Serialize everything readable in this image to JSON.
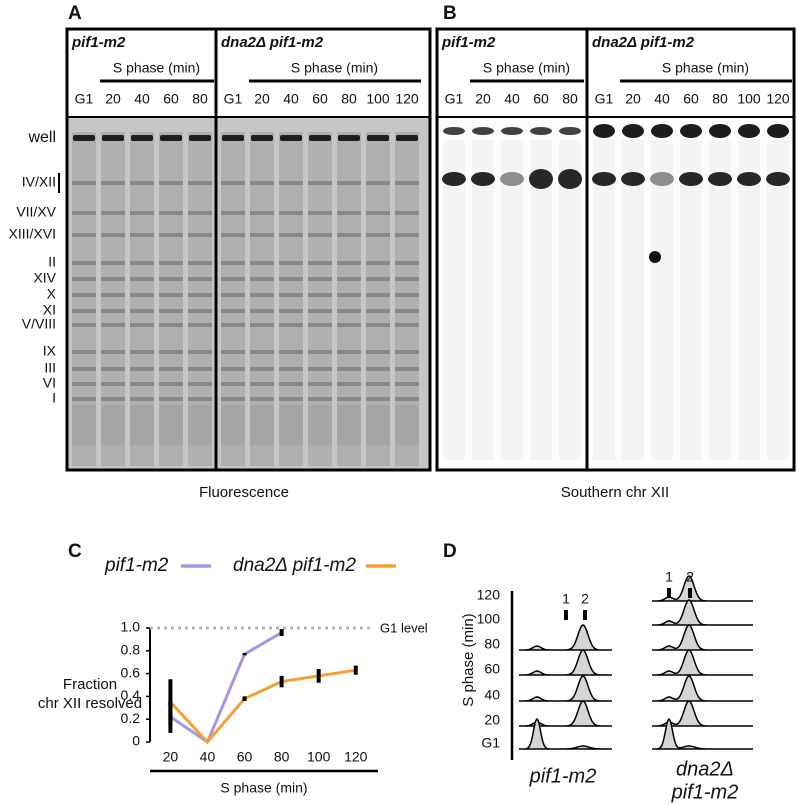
{
  "panel_a": {
    "panel_label": "A",
    "strains": [
      {
        "name": "pif1-m2",
        "lanes": [
          "G1",
          "20",
          "40",
          "60",
          "80"
        ]
      },
      {
        "name": "dna2Δ pif1-m2",
        "lanes": [
          "G1",
          "20",
          "40",
          "60",
          "80",
          "100",
          "120"
        ]
      }
    ],
    "lane_axis": "S phase (min)",
    "bands": [
      "well",
      "IV/XII",
      "VII/XV",
      "XIII/XVI",
      "II",
      "XIV",
      "X",
      "XI",
      "V/VIII",
      "IX",
      "III",
      "VI",
      "I"
    ],
    "caption": "Fluorescence"
  },
  "panel_b": {
    "panel_label": "B",
    "strains": [
      {
        "name": "pif1-m2",
        "lanes": [
          "G1",
          "20",
          "40",
          "60",
          "80"
        ]
      },
      {
        "name": "dna2Δ pif1-m2",
        "lanes": [
          "G1",
          "20",
          "40",
          "60",
          "80",
          "100",
          "120"
        ]
      }
    ],
    "lane_axis": "S phase (min)",
    "caption": "Southern chr XII"
  },
  "chart_data": {
    "type": "line",
    "panel_label": "C",
    "x": [
      20,
      40,
      60,
      80,
      100,
      120
    ],
    "series": [
      {
        "name": "pif1-m2",
        "color": "#9f98e6",
        "values": [
          0.22,
          0,
          0.77,
          0.96,
          null,
          null
        ],
        "errors": [
          0.14,
          null,
          0.01,
          0.03,
          null,
          null
        ]
      },
      {
        "name": "dna2Δ pif1-m2",
        "color": "#f5a033",
        "values": [
          0.35,
          0,
          0.38,
          0.53,
          0.58,
          0.63
        ],
        "errors": [
          0.2,
          null,
          0.02,
          0.05,
          0.06,
          0.04
        ]
      }
    ],
    "xlim": [
      9,
      132
    ],
    "ylim": [
      0,
      1
    ],
    "xticks": [
      20,
      40,
      60,
      80,
      100,
      120
    ],
    "yticks": [
      0,
      0.2,
      0.4,
      0.6,
      0.8,
      {
        "value": 1,
        "label": "1.0"
      }
    ],
    "xlabel": "S phase (min)",
    "ylabel": [
      "Fraction",
      "chr XII resolved"
    ],
    "reference": {
      "value": 1,
      "label": "G1 level",
      "color": "#b0b8b0"
    }
  },
  "panel_d": {
    "panel_label": "D",
    "rows": [
      "120",
      "100",
      "80",
      "60",
      "40",
      "20",
      "G1"
    ],
    "axis_label": "S phase (min)",
    "peaks": [
      "1",
      "2"
    ],
    "strains": [
      [
        "pif1-m2"
      ],
      [
        "dna2Δ",
        "pif1-m2"
      ]
    ]
  }
}
